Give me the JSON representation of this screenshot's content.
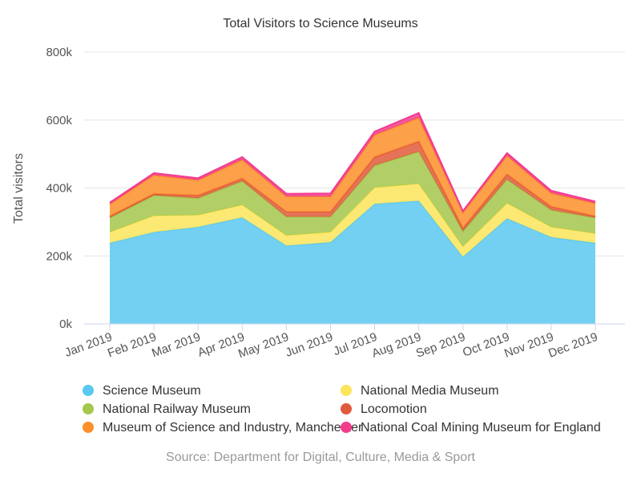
{
  "chart_data": {
    "type": "area",
    "stacked": true,
    "title": "Total Visitors to Science Museums",
    "ylabel": "Total visitors",
    "xlabel": "",
    "categories": [
      "Jan 2019",
      "Feb 2019",
      "Mar 2019",
      "Apr 2019",
      "May 2019",
      "Jun 2019",
      "Jul 2019",
      "Aug 2019",
      "Sep 2019",
      "Oct 2019",
      "Nov 2019",
      "Dec 2019"
    ],
    "ylim": [
      0,
      800000
    ],
    "yticks": [
      {
        "value": 0,
        "label": "0k"
      },
      {
        "value": 200000,
        "label": "200k"
      },
      {
        "value": 400000,
        "label": "400k"
      },
      {
        "value": 600000,
        "label": "600k"
      },
      {
        "value": 800000,
        "label": "800k"
      }
    ],
    "grid": true,
    "legend_position": "bottom",
    "series": [
      {
        "name": "Science Museum",
        "color": "#5ac8f0",
        "values": [
          238000,
          270000,
          285000,
          313000,
          230000,
          240000,
          353000,
          362000,
          197000,
          310000,
          255000,
          238000
        ]
      },
      {
        "name": "National Media Museum",
        "color": "#fce55c",
        "values": [
          32000,
          48000,
          35000,
          37000,
          30000,
          30000,
          48000,
          50000,
          30000,
          45000,
          30000,
          28000
        ]
      },
      {
        "name": "National Railway Museum",
        "color": "#a5c74c",
        "values": [
          42000,
          60000,
          50000,
          70000,
          55000,
          45000,
          65000,
          95000,
          45000,
          70000,
          50000,
          46000
        ]
      },
      {
        "name": "Locomotion",
        "color": "#e05a3b",
        "values": [
          5000,
          5000,
          8000,
          8000,
          15000,
          15000,
          25000,
          30000,
          10000,
          15000,
          10000,
          5000
        ]
      },
      {
        "name": "Museum of Science and Industry, Manchester",
        "color": "#fb8f2a",
        "values": [
          35000,
          55000,
          45000,
          55000,
          45000,
          45000,
          65000,
          70000,
          45000,
          55000,
          40000,
          38000
        ]
      },
      {
        "name": "National Coal Mining Museum for England",
        "color": "#f23c8e",
        "values": [
          5000,
          6000,
          6000,
          8000,
          8000,
          9000,
          10000,
          14000,
          5000,
          8000,
          7000,
          5000
        ]
      }
    ],
    "source": "Source: Department for Digital, Culture, Media & Sport"
  }
}
